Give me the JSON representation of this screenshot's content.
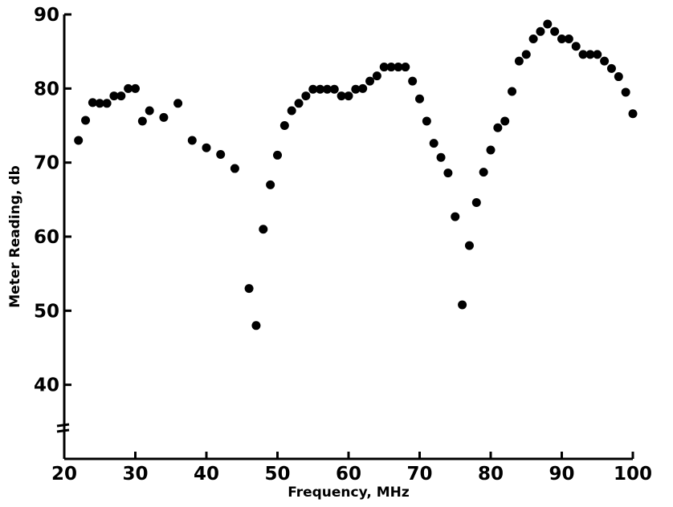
{
  "chart_data": {
    "type": "scatter",
    "title": "",
    "xlabel": "Frequency, MHz",
    "ylabel": "Meter Reading, db",
    "xlim": [
      20,
      100
    ],
    "ylim": [
      30,
      90
    ],
    "x_ticks": [
      20,
      30,
      40,
      50,
      60,
      70,
      80,
      90,
      100
    ],
    "y_ticks": [
      40,
      50,
      60,
      70,
      80,
      90
    ],
    "y_axis_break": true,
    "grid": false,
    "legend": "none",
    "point_color": "#000000",
    "series": [
      {
        "x": [
          22,
          23,
          24,
          25,
          26,
          27,
          28,
          29,
          30,
          31,
          32,
          34,
          36,
          38,
          40,
          42,
          44,
          46,
          47,
          48,
          49,
          50,
          51,
          52,
          53,
          54,
          55,
          56,
          57,
          58,
          59,
          60,
          61,
          62,
          63,
          64,
          65,
          66,
          67,
          68,
          69,
          70,
          71,
          72,
          73,
          74,
          75,
          76,
          77,
          78,
          79,
          80,
          81,
          82,
          83,
          84,
          85,
          86,
          87,
          88,
          89,
          90,
          91,
          92,
          93,
          94,
          95,
          96,
          97,
          98,
          99,
          100
        ],
        "y": [
          73,
          75.7,
          78.1,
          78,
          78,
          79,
          79,
          80,
          80,
          75.6,
          77,
          76.1,
          78,
          73,
          72,
          71.1,
          69.2,
          53,
          48,
          61,
          67,
          71,
          75,
          77,
          78,
          79,
          79.9,
          79.9,
          79.9,
          79.9,
          79,
          79,
          79.9,
          80,
          81,
          81.7,
          82.9,
          82.9,
          82.9,
          82.9,
          81,
          78.6,
          75.6,
          72.6,
          70.7,
          68.6,
          62.7,
          50.8,
          58.8,
          64.6,
          68.7,
          71.7,
          74.7,
          75.6,
          79.6,
          83.7,
          84.6,
          86.7,
          87.7,
          88.7,
          87.7,
          86.7,
          86.7,
          85.7,
          84.6,
          84.6,
          84.6,
          83.7,
          82.7,
          81.6,
          79.5,
          76.6
        ]
      }
    ]
  }
}
